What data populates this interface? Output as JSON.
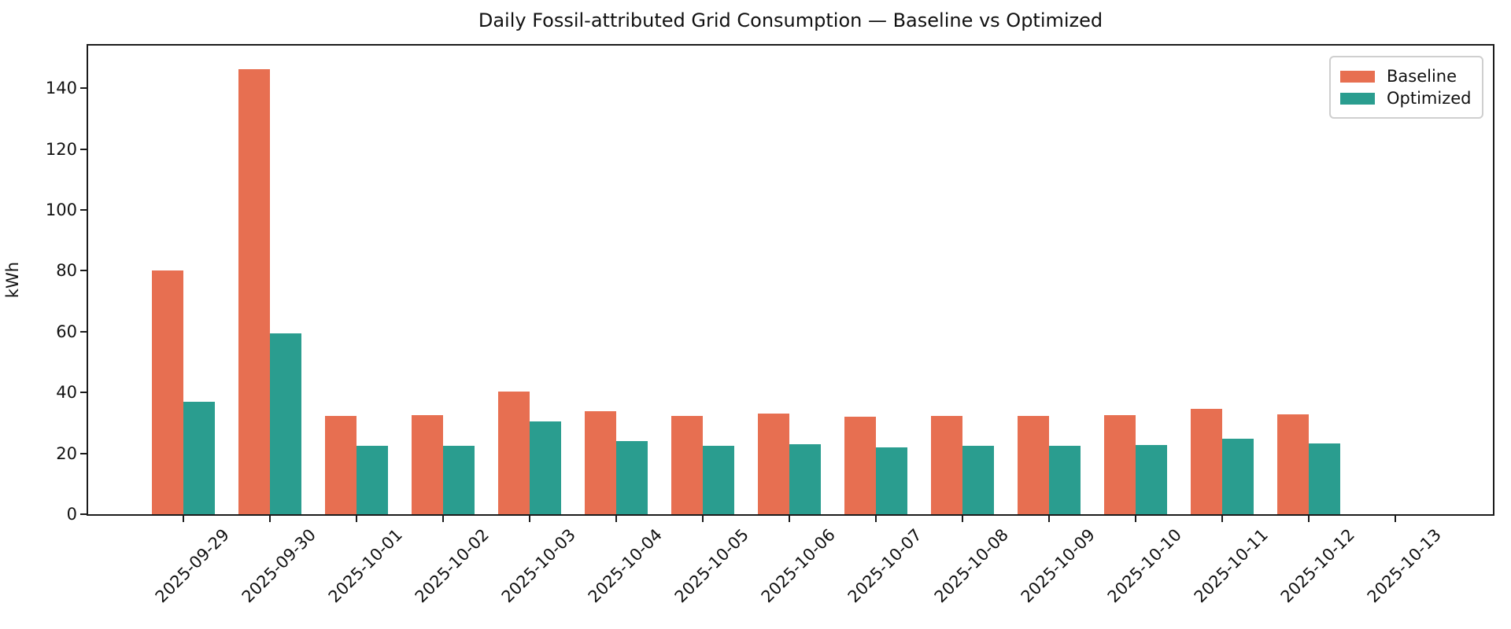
{
  "figure": {
    "title": "Daily Fossil-attributed Grid Consumption — Baseline vs Optimized",
    "ylabel": "kWh"
  },
  "legend": {
    "items": [
      "Baseline",
      "Optimized"
    ]
  },
  "chart_data": {
    "type": "bar",
    "title": "Daily Fossil-attributed Grid Consumption — Baseline vs Optimized",
    "xlabel": "",
    "ylabel": "kWh",
    "categories": [
      "2025-09-29",
      "2025-09-30",
      "2025-10-01",
      "2025-10-02",
      "2025-10-03",
      "2025-10-04",
      "2025-10-05",
      "2025-10-06",
      "2025-10-07",
      "2025-10-08",
      "2025-10-09",
      "2025-10-10",
      "2025-10-11",
      "2025-10-12",
      "2025-10-13"
    ],
    "series": [
      {
        "name": "Baseline",
        "color": "#E76F51",
        "values": [
          80.0,
          146.3,
          32.2,
          32.5,
          40.3,
          33.8,
          32.3,
          33.0,
          32.0,
          32.3,
          32.3,
          32.5,
          34.6,
          32.8,
          0.0
        ]
      },
      {
        "name": "Optimized",
        "color": "#2A9D8F",
        "values": [
          37.0,
          59.5,
          22.4,
          22.4,
          30.4,
          24.0,
          22.4,
          23.0,
          21.9,
          22.4,
          22.4,
          22.7,
          24.7,
          23.2,
          0.0
        ]
      }
    ],
    "ylim": [
      0,
      154
    ],
    "yticks": [
      0,
      20,
      40,
      60,
      80,
      100,
      120,
      140
    ],
    "x_tick_rotation": 45,
    "grid": false,
    "legend_position": "upper right"
  }
}
